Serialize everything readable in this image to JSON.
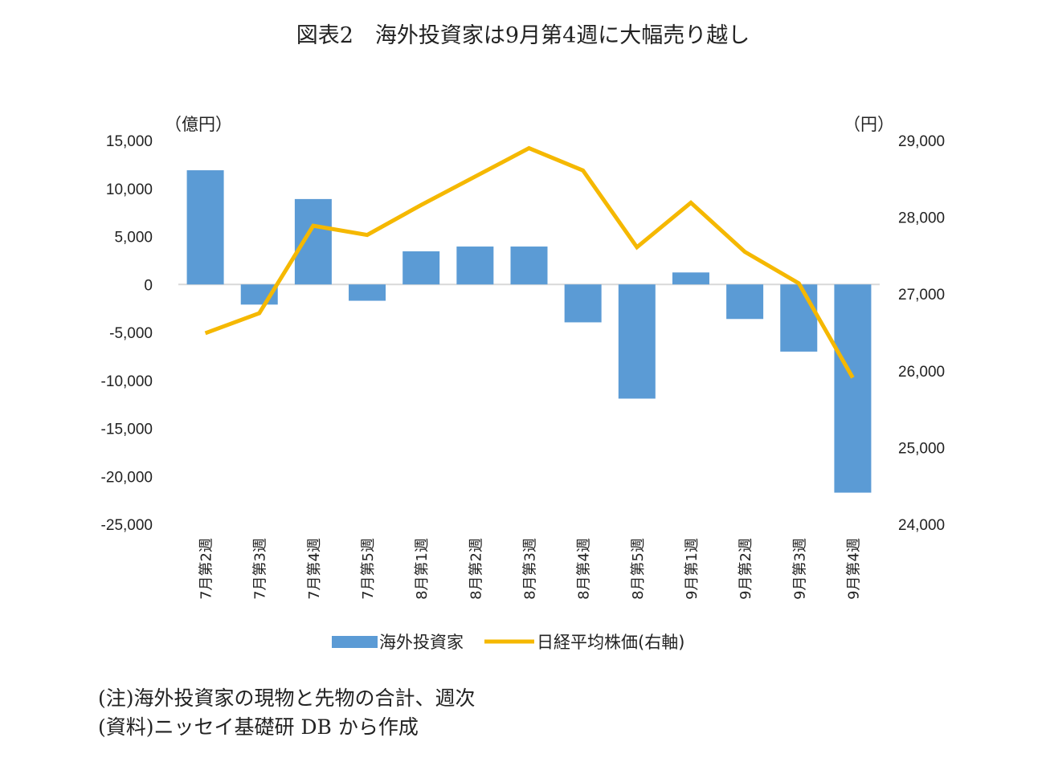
{
  "title": "図表2　海外投資家は9月第4週に大幅売り越し",
  "chart_data": {
    "type": "bar+line",
    "title": "図表2　海外投資家は9月第4週に大幅売り越し",
    "categories": [
      "7月第2週",
      "7月第3週",
      "7月第4週",
      "7月第5週",
      "8月第1週",
      "8月第2週",
      "8月第3週",
      "8月第4週",
      "8月第5週",
      "9月第1週",
      "9月第2週",
      "9月第3週",
      "9月第4週"
    ],
    "left_axis": {
      "unit": "（億円）",
      "ylim": [
        -25000,
        15000
      ],
      "ticks": [
        15000,
        10000,
        5000,
        0,
        -5000,
        -10000,
        -15000,
        -20000,
        -25000
      ],
      "tick_labels": [
        "15,000",
        "10,000",
        "5,000",
        "0",
        "-5,000",
        "-10,000",
        "-15,000",
        "-20,000",
        "-25,000"
      ]
    },
    "right_axis": {
      "unit": "（円）",
      "ylim": [
        24000,
        29000
      ],
      "ticks": [
        29000,
        28000,
        27000,
        26000,
        25000,
        24000
      ],
      "tick_labels": [
        "29,000",
        "28,000",
        "27,000",
        "26,000",
        "25,000",
        "24,000"
      ]
    },
    "series": [
      {
        "name": "海外投資家",
        "type": "bar",
        "axis": "left",
        "color": "#5b9bd5",
        "values": [
          11900,
          -2100,
          8900,
          -1700,
          3450,
          3950,
          3950,
          -3950,
          -11900,
          1250,
          -3600,
          -7000,
          -21700
        ]
      },
      {
        "name": "日経平均株価(右軸)",
        "type": "line",
        "axis": "right",
        "color": "#f5b800",
        "values": [
          26490,
          26750,
          27890,
          27770,
          28160,
          28530,
          28900,
          28610,
          27610,
          28190,
          27550,
          27140,
          25910
        ]
      }
    ],
    "grid": false,
    "legend": "bottom"
  },
  "notes": [
    "(注)海外投資家の現物と先物の合計、週次",
    "(資料)ニッセイ基礎研 DB から作成"
  ]
}
